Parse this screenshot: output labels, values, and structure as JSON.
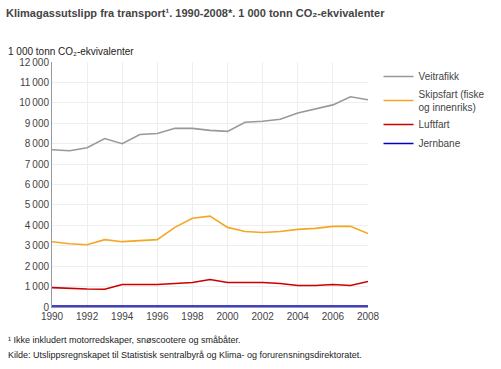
{
  "chart_data": {
    "type": "line",
    "title": "Klimagassutslipp fra transport¹. 1990-2008*. 1 000 tonn CO₂-ekvivalenter",
    "ylabel": "1 000 tonn CO₂-ekvivalenter",
    "annotations": [
      "¹ Ikke inkludert motorredskaper, snøscootere og småbåter.",
      "Kilde: Utslippsregnskapet til Statistisk sentralbyrå og Klima- og forurensningsdirektoratet."
    ],
    "x": [
      1990,
      1991,
      1992,
      1993,
      1994,
      1995,
      1996,
      1997,
      1998,
      1999,
      2000,
      2001,
      2002,
      2003,
      2004,
      2005,
      2006,
      2007,
      2008
    ],
    "series": [
      {
        "name": "Veitrafikk",
        "color": "#999999",
        "values": [
          7700,
          7650,
          7800,
          8250,
          8000,
          8450,
          8500,
          8750,
          8750,
          8650,
          8600,
          9050,
          9100,
          9200,
          9500,
          9700,
          9900,
          10300,
          10150
        ]
      },
      {
        "name": "Skipsfart (fiske\nog innenriks)",
        "color": "#f5a623",
        "values": [
          3200,
          3100,
          3050,
          3300,
          3200,
          3250,
          3300,
          3900,
          4350,
          4450,
          3900,
          3700,
          3650,
          3700,
          3800,
          3850,
          3950,
          3950,
          3600
        ]
      },
      {
        "name": "Luftfart",
        "color": "#cc0000",
        "values": [
          950,
          900,
          880,
          870,
          1100,
          1100,
          1100,
          1150,
          1200,
          1350,
          1200,
          1200,
          1200,
          1150,
          1050,
          1050,
          1100,
          1050,
          1250
        ]
      },
      {
        "name": "Jernbane",
        "color": "#0000cc",
        "values": [
          50,
          50,
          50,
          50,
          50,
          50,
          50,
          50,
          50,
          50,
          50,
          50,
          50,
          50,
          50,
          50,
          50,
          50,
          50
        ]
      }
    ],
    "xlim": [
      1990,
      2008
    ],
    "xticks": [
      1990,
      1992,
      1994,
      1996,
      1998,
      2000,
      2002,
      2004,
      2006,
      2008
    ],
    "ylim": [
      0,
      12000
    ],
    "yticks": [
      0,
      {
        "value": 1000,
        "label": "1 000"
      },
      {
        "value": 2000,
        "label": "2 000"
      },
      {
        "value": 3000,
        "label": "3 000"
      },
      {
        "value": 4000,
        "label": "4 000"
      },
      {
        "value": 5000,
        "label": "5 000"
      },
      {
        "value": 6000,
        "label": "6 000"
      },
      {
        "value": 7000,
        "label": "7 000"
      },
      {
        "value": 8000,
        "label": "8 000"
      },
      {
        "value": 9000,
        "label": "9 000"
      },
      {
        "value": 10000,
        "label": "10 000"
      },
      {
        "value": 11000,
        "label": "11 000"
      },
      {
        "value": 12000,
        "label": "12 000"
      }
    ],
    "grid": true,
    "legend": "right"
  }
}
